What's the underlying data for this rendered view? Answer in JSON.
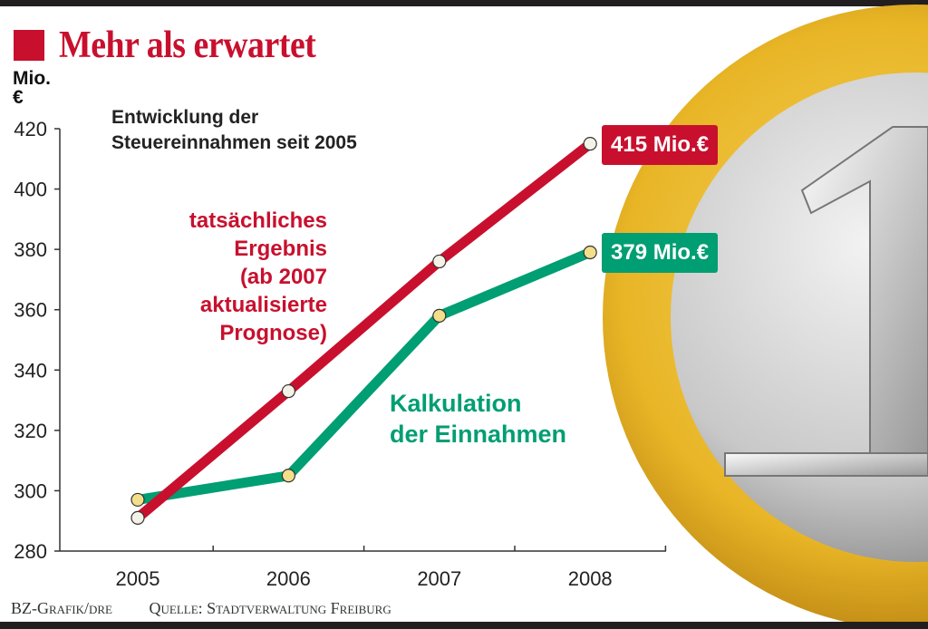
{
  "header": {
    "title": "Mehr als erwartet",
    "unit": "Mio. €"
  },
  "footer": {
    "credit": "BZ-Grafik/dre",
    "source": "Quelle: Stadtverwaltung Freiburg"
  },
  "chart_data": {
    "type": "line",
    "title": "Mehr als erwartet",
    "subtitle_line1": "Entwicklung der",
    "subtitle_line2": "Steuereinnahmen seit 2005",
    "ylabel_line1": "Mio.",
    "ylabel_line2": "€",
    "x": [
      "2005",
      "2006",
      "2007",
      "2008"
    ],
    "ylim": [
      280,
      420
    ],
    "yticks": [
      280,
      300,
      320,
      340,
      360,
      380,
      400,
      420
    ],
    "series": [
      {
        "name": "tatsächliches Ergebnis (ab 2007 aktualisierte Prognose)",
        "label_lines": [
          "tatsächliches",
          "Ergebnis",
          "(ab 2007",
          "aktualisierte",
          "Prognose)"
        ],
        "color": "#c8102e",
        "values": [
          291,
          333,
          376,
          415
        ],
        "end_label": "415 Mio.€"
      },
      {
        "name": "Kalkulation der Einnahmen",
        "label_lines": [
          "Kalkulation",
          "der Einnahmen"
        ],
        "color": "#009e73",
        "values": [
          297,
          305,
          358,
          379
        ],
        "end_label": "379 Mio.€"
      }
    ],
    "grid": false,
    "legend": "inline labels"
  }
}
